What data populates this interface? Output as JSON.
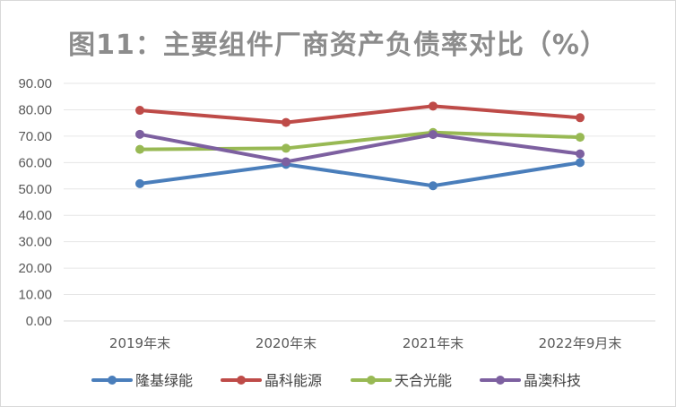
{
  "chart_data": {
    "type": "line",
    "title": "图11：主要组件厂商资产负债率对比（%）",
    "xlabel": "",
    "ylabel": "",
    "categories": [
      "2019年末",
      "2020年末",
      "2021年末",
      "2022年9月末"
    ],
    "ylim": [
      0,
      90
    ],
    "yticks": [
      "0.00",
      "10.00",
      "20.00",
      "30.00",
      "40.00",
      "50.00",
      "60.00",
      "70.00",
      "80.00",
      "90.00"
    ],
    "grid": true,
    "legend_position": "bottom",
    "series": [
      {
        "name": "隆基绿能",
        "color": "#4a7ebb",
        "values": [
          52.0,
          59.3,
          51.2,
          60.0
        ]
      },
      {
        "name": "晶科能源",
        "color": "#be4b48",
        "values": [
          79.8,
          75.2,
          81.4,
          77.0
        ]
      },
      {
        "name": "天合光能",
        "color": "#98b954",
        "values": [
          65.0,
          65.4,
          71.4,
          69.6
        ]
      },
      {
        "name": "晶澳科技",
        "color": "#7d60a0",
        "values": [
          70.7,
          60.3,
          70.6,
          63.3
        ]
      }
    ]
  }
}
